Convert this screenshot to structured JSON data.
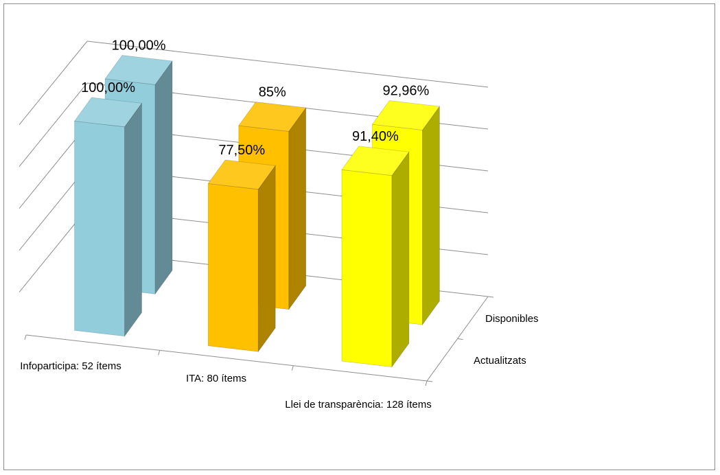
{
  "chart_data": {
    "type": "bar",
    "subtype": "3d-clustered",
    "title": "",
    "categories": [
      "Infoparticipa: 52 ítems",
      "ITA: 80 ítems",
      "Llei de transparència: 128 ítems"
    ],
    "series": [
      {
        "name": "Actualitzats",
        "values": [
          100.0,
          77.5,
          91.4
        ],
        "labels": [
          "100,00%",
          "77,50%",
          "91,40%"
        ]
      },
      {
        "name": "Disponibles",
        "values": [
          100.0,
          85.0,
          92.96
        ],
        "labels": [
          "100,00%",
          "85%",
          "92,96%"
        ]
      }
    ],
    "category_colors": [
      "#92cddc",
      "#ffc000",
      "#ffff00"
    ],
    "ylim": [
      0,
      100
    ],
    "grid": true,
    "legend": "none"
  }
}
